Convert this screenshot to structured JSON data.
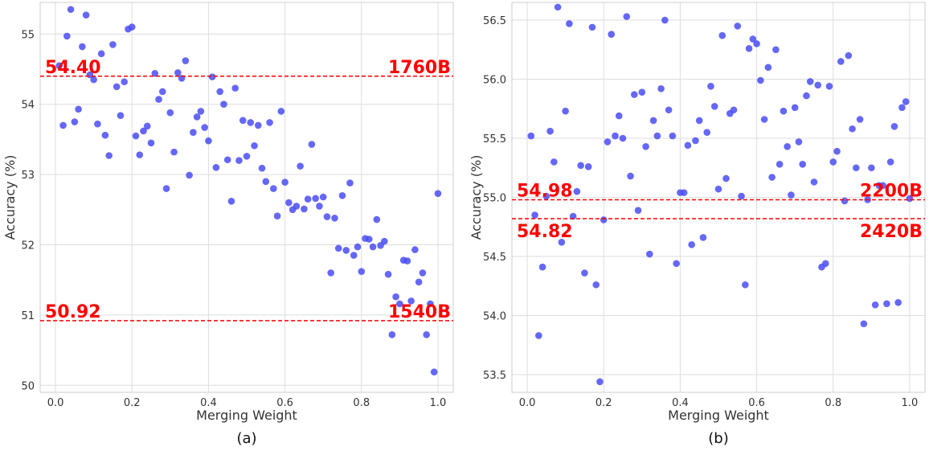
{
  "colors": {
    "points": "#4a4cf5",
    "reference": "#ff0000",
    "grid": "#dddddd",
    "frame": "#cccccc"
  },
  "chart_data": [
    {
      "type": "scatter",
      "panel_label": "(a)",
      "xlabel": "Merging Weight",
      "ylabel": "Accuracy (%)",
      "xlim": [
        -0.04,
        1.04
      ],
      "ylim": [
        49.9,
        55.45
      ],
      "xticks": [
        0.0,
        0.2,
        0.4,
        0.6,
        0.8,
        1.0
      ],
      "yticks": [
        50,
        51,
        52,
        53,
        54,
        55
      ],
      "grid": true,
      "reference_lines": [
        {
          "y": 54.4,
          "left_label": "54.40",
          "right_label": "1760B",
          "label_side": "above"
        },
        {
          "y": 50.92,
          "left_label": "50.92",
          "right_label": "1540B",
          "label_side": "above"
        }
      ],
      "x": [
        0.01,
        0.02,
        0.03,
        0.04,
        0.05,
        0.06,
        0.07,
        0.08,
        0.09,
        0.1,
        0.11,
        0.12,
        0.13,
        0.14,
        0.15,
        0.16,
        0.17,
        0.18,
        0.19,
        0.2,
        0.21,
        0.22,
        0.23,
        0.24,
        0.25,
        0.26,
        0.27,
        0.28,
        0.29,
        0.3,
        0.31,
        0.32,
        0.33,
        0.34,
        0.35,
        0.36,
        0.37,
        0.38,
        0.39,
        0.4,
        0.41,
        0.42,
        0.43,
        0.44,
        0.45,
        0.46,
        0.47,
        0.48,
        0.49,
        0.5,
        0.51,
        0.52,
        0.53,
        0.54,
        0.55,
        0.56,
        0.57,
        0.58,
        0.59,
        0.6,
        0.61,
        0.62,
        0.63,
        0.64,
        0.65,
        0.66,
        0.67,
        0.68,
        0.69,
        0.7,
        0.71,
        0.72,
        0.73,
        0.74,
        0.75,
        0.76,
        0.77,
        0.78,
        0.79,
        0.8,
        0.81,
        0.82,
        0.83,
        0.84,
        0.85,
        0.86,
        0.87,
        0.88,
        0.89,
        0.9,
        0.91,
        0.92,
        0.93,
        0.94,
        0.95,
        0.96,
        0.97,
        0.98,
        0.99,
        1.0
      ],
      "y": [
        54.55,
        53.7,
        54.97,
        55.35,
        53.75,
        53.93,
        54.82,
        55.27,
        54.42,
        54.35,
        53.72,
        54.72,
        53.56,
        53.27,
        54.85,
        54.25,
        53.84,
        54.32,
        55.07,
        55.1,
        53.55,
        53.28,
        53.62,
        53.69,
        53.45,
        54.44,
        54.07,
        54.18,
        52.8,
        53.88,
        53.32,
        54.45,
        54.37,
        54.62,
        52.99,
        53.6,
        53.82,
        53.9,
        53.67,
        53.48,
        54.39,
        53.1,
        54.18,
        54.0,
        53.21,
        52.62,
        54.23,
        53.2,
        53.77,
        53.26,
        53.74,
        53.41,
        53.7,
        53.09,
        52.9,
        53.74,
        52.8,
        52.41,
        53.9,
        52.89,
        52.6,
        52.5,
        52.55,
        53.12,
        52.51,
        52.65,
        53.43,
        52.66,
        52.55,
        52.68,
        52.4,
        51.6,
        52.38,
        51.95,
        52.7,
        51.92,
        52.88,
        51.85,
        51.97,
        51.62,
        52.09,
        52.08,
        51.97,
        52.36,
        51.99,
        52.05,
        51.58,
        50.72,
        51.26,
        51.16,
        51.78,
        51.77,
        51.2,
        51.93,
        51.47,
        51.6,
        50.72,
        51.16,
        50.19,
        52.73
      ]
    },
    {
      "type": "scatter",
      "panel_label": "(b)",
      "xlabel": "Merging Weight",
      "ylabel": "Accuracy (%)",
      "xlim": [
        -0.04,
        1.04
      ],
      "ylim": [
        53.35,
        56.65
      ],
      "xticks": [
        0.0,
        0.2,
        0.4,
        0.6,
        0.8,
        1.0
      ],
      "yticks": [
        53.5,
        54.0,
        54.5,
        55.0,
        55.5,
        56.0,
        56.5
      ],
      "grid": true,
      "reference_lines": [
        {
          "y": 54.98,
          "left_label": "54.98",
          "right_label": "2200B",
          "label_side": "above"
        },
        {
          "y": 54.82,
          "left_label": "54.82",
          "right_label": "2420B",
          "label_side": "below"
        }
      ],
      "x": [
        0.01,
        0.02,
        0.03,
        0.04,
        0.05,
        0.06,
        0.07,
        0.08,
        0.09,
        0.1,
        0.11,
        0.12,
        0.13,
        0.14,
        0.15,
        0.16,
        0.17,
        0.18,
        0.19,
        0.2,
        0.21,
        0.22,
        0.23,
        0.24,
        0.25,
        0.26,
        0.27,
        0.28,
        0.29,
        0.3,
        0.31,
        0.32,
        0.33,
        0.34,
        0.35,
        0.36,
        0.37,
        0.38,
        0.39,
        0.4,
        0.41,
        0.42,
        0.43,
        0.44,
        0.45,
        0.46,
        0.47,
        0.48,
        0.49,
        0.5,
        0.51,
        0.52,
        0.53,
        0.54,
        0.55,
        0.56,
        0.57,
        0.58,
        0.59,
        0.6,
        0.61,
        0.62,
        0.63,
        0.64,
        0.65,
        0.66,
        0.67,
        0.68,
        0.69,
        0.7,
        0.71,
        0.72,
        0.73,
        0.74,
        0.75,
        0.76,
        0.77,
        0.78,
        0.79,
        0.8,
        0.81,
        0.82,
        0.83,
        0.84,
        0.85,
        0.86,
        0.87,
        0.88,
        0.89,
        0.9,
        0.91,
        0.92,
        0.93,
        0.94,
        0.95,
        0.96,
        0.97,
        0.98,
        0.99,
        1.0
      ],
      "y": [
        55.52,
        54.85,
        53.83,
        54.41,
        55.01,
        55.56,
        55.3,
        56.61,
        54.62,
        55.73,
        56.47,
        54.84,
        55.05,
        55.27,
        54.36,
        55.26,
        56.44,
        54.26,
        53.44,
        54.81,
        55.47,
        56.38,
        55.52,
        55.69,
        55.5,
        56.53,
        55.18,
        55.87,
        54.89,
        55.89,
        55.43,
        54.52,
        55.65,
        55.52,
        55.92,
        56.5,
        55.74,
        55.52,
        54.44,
        55.04,
        55.04,
        55.44,
        54.6,
        55.48,
        55.65,
        54.66,
        55.55,
        55.94,
        55.77,
        55.07,
        56.37,
        55.16,
        55.71,
        55.74,
        56.45,
        55.01,
        54.26,
        56.26,
        56.34,
        56.3,
        55.99,
        55.66,
        56.1,
        55.17,
        56.25,
        55.28,
        55.73,
        55.43,
        55.02,
        55.76,
        55.47,
        55.28,
        55.86,
        55.98,
        55.13,
        55.95,
        54.41,
        54.44,
        55.94,
        55.3,
        55.39,
        56.15,
        54.97,
        56.2,
        55.58,
        55.25,
        55.66,
        53.93,
        54.98,
        55.25,
        54.09,
        55.1,
        55.1,
        54.1,
        55.3,
        55.6,
        54.11,
        55.76,
        55.81,
        54.99
      ]
    }
  ]
}
